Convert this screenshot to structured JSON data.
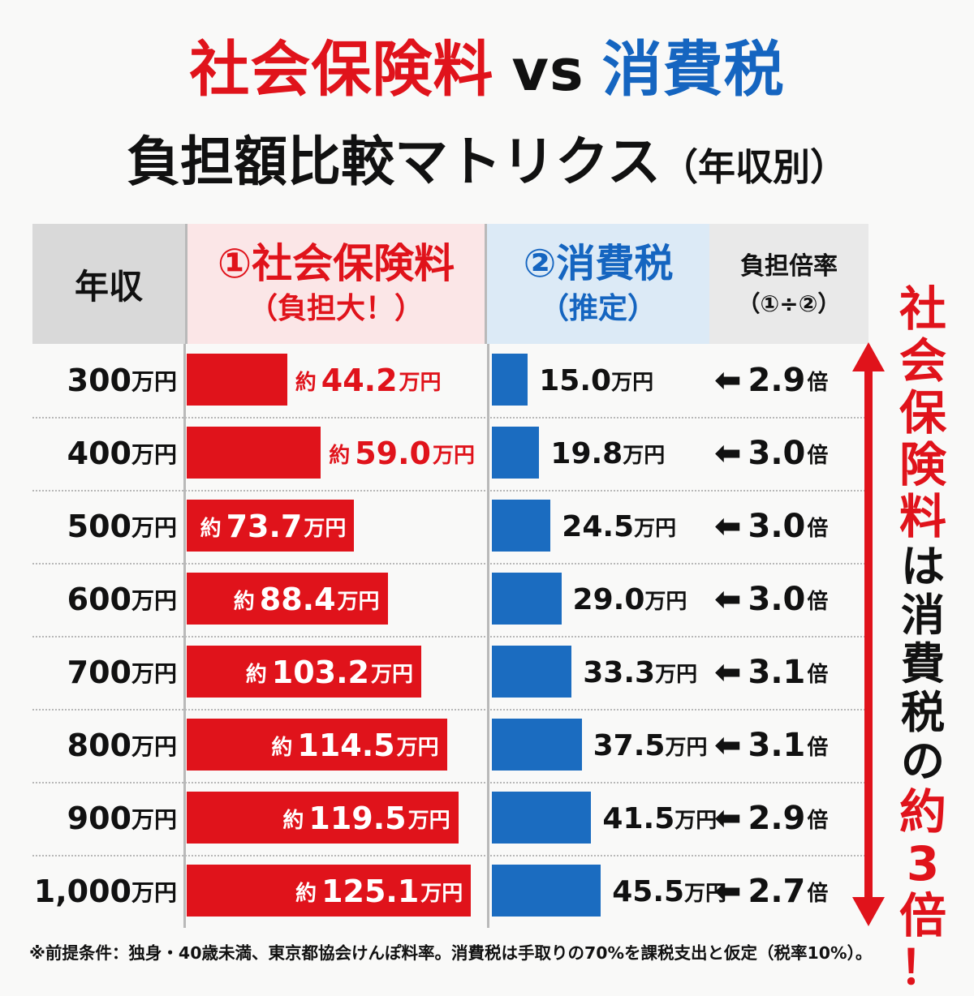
{
  "title": {
    "part1": "社会保険料",
    "vs": "vs",
    "part2": "消費税",
    "line2": "負担額比較マトリクス",
    "line2_suffix": "（年収別）"
  },
  "colors": {
    "red": "#e0131b",
    "blue": "#1565c0",
    "bar_blue": "#1b6cc0"
  },
  "headers": {
    "income": "年収",
    "ss_line1": "①社会保険料",
    "ss_line2": "（負担大！）",
    "ct_line1": "②消費税",
    "ct_line2": "（推定）",
    "ratio_line1": "負担倍率",
    "ratio_line2": "（①÷②）"
  },
  "labels": {
    "approx_prefix": "約",
    "unit": "万円",
    "ratio_arrow": "⬅",
    "ratio_unit": "倍"
  },
  "chart_data": {
    "type": "table",
    "columns": [
      "年収",
      "①社会保険料（負担大！）",
      "②消費税（推定）",
      "負担倍率（①÷②）"
    ],
    "rows": [
      {
        "income": "300",
        "social_insurance": 44.2,
        "consumption_tax": 15.0,
        "ratio": 2.9
      },
      {
        "income": "400",
        "social_insurance": 59.0,
        "consumption_tax": 19.8,
        "ratio": 3.0
      },
      {
        "income": "500",
        "social_insurance": 73.7,
        "consumption_tax": 24.5,
        "ratio": 3.0
      },
      {
        "income": "600",
        "social_insurance": 88.4,
        "consumption_tax": 29.0,
        "ratio": 3.0
      },
      {
        "income": "700",
        "social_insurance": 103.2,
        "consumption_tax": 33.3,
        "ratio": 3.1
      },
      {
        "income": "800",
        "social_insurance": 114.5,
        "consumption_tax": 37.5,
        "ratio": 3.1
      },
      {
        "income": "900",
        "social_insurance": 119.5,
        "consumption_tax": 41.5,
        "ratio": 2.9
      },
      {
        "income": "1,000",
        "social_insurance": 125.1,
        "consumption_tax": 45.5,
        "ratio": 2.7
      }
    ]
  },
  "side_note": {
    "red_part": "社会保険料",
    "black_part": "は消費税の",
    "red_end": "約3倍！"
  },
  "footnote": "※前提条件：独身・40歳未満、東京都協会けんぽ料率。消費税は手取りの70%を課税支出と仮定（税率10%）。"
}
